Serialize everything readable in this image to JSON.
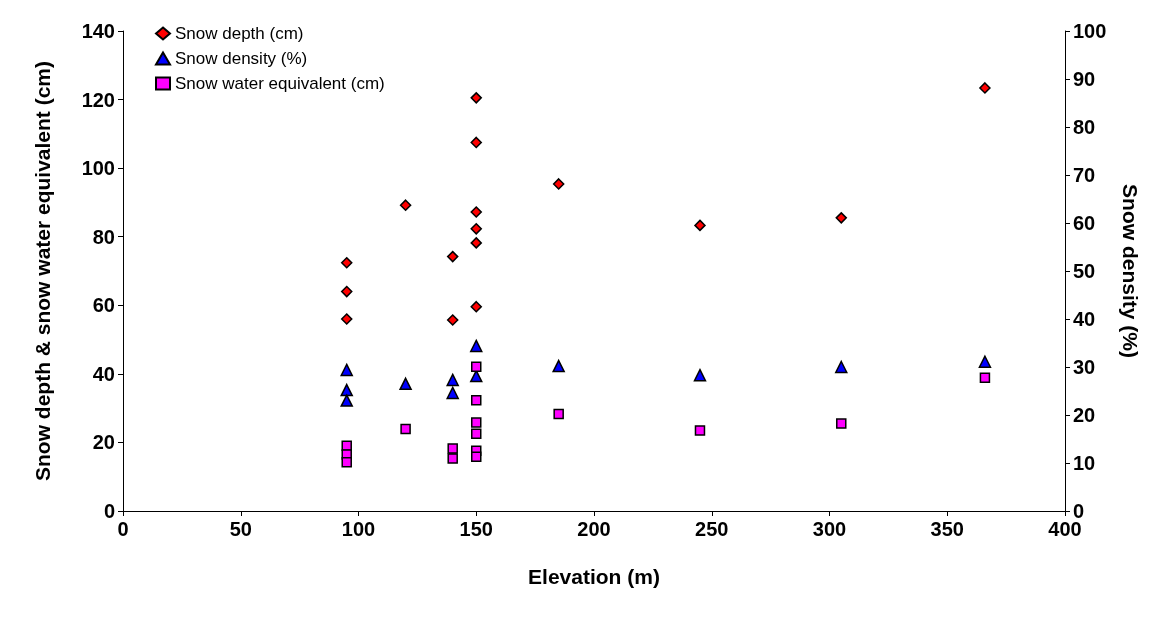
{
  "chart_data": {
    "type": "scatter",
    "xlabel": "Elevation (m)",
    "ylabel": "Snow depth & snow water equivalent (cm)",
    "y2label": "Snow density (%)",
    "xlim": [
      0,
      400
    ],
    "xticks": [
      0,
      50,
      100,
      150,
      200,
      250,
      300,
      350,
      400
    ],
    "ylim": [
      0,
      140
    ],
    "yticks": [
      0,
      20,
      40,
      60,
      80,
      100,
      120,
      140
    ],
    "y2lim": [
      0,
      100
    ],
    "y2ticks": [
      0,
      10,
      20,
      30,
      40,
      50,
      60,
      70,
      80,
      90,
      100
    ],
    "grid": false,
    "legend": "top left",
    "series": [
      {
        "name": "Snow depth (cm)",
        "color": "#ff0000",
        "marker": "diamond",
        "x": [
          95,
          95,
          95,
          120,
          140,
          140,
          150,
          150,
          150,
          150,
          150,
          150,
          185,
          245,
          305,
          366
        ],
        "values": [
          72.4,
          64,
          56,
          89.2,
          74.2,
          55.7,
          120.5,
          107.5,
          87.2,
          82.3,
          78.2,
          59.6,
          95.4,
          83.3,
          85.5,
          123.4
        ]
      },
      {
        "name": "Snow density (%)",
        "color": "#0000ff",
        "marker": "triangle",
        "axis": "y2",
        "x": [
          95,
          95,
          95,
          120,
          140,
          140,
          150,
          150,
          185,
          245,
          305,
          366
        ],
        "values": [
          29.4,
          25.2,
          23,
          26.5,
          27.3,
          24.6,
          34.4,
          28.1,
          30.2,
          28.3,
          30,
          31.1
        ]
      },
      {
        "name": "Snow water equivalent (cm)",
        "color": "#ff00ff",
        "marker": "square",
        "x": [
          95,
          95,
          95,
          120,
          140,
          140,
          150,
          150,
          150,
          150,
          150,
          150,
          185,
          245,
          305,
          366
        ],
        "values": [
          19,
          16.5,
          14.2,
          23.9,
          18.2,
          15.3,
          42.1,
          32.3,
          25.8,
          22.5,
          17.6,
          15.8,
          28.3,
          23.5,
          25.5,
          38.9
        ]
      }
    ]
  }
}
